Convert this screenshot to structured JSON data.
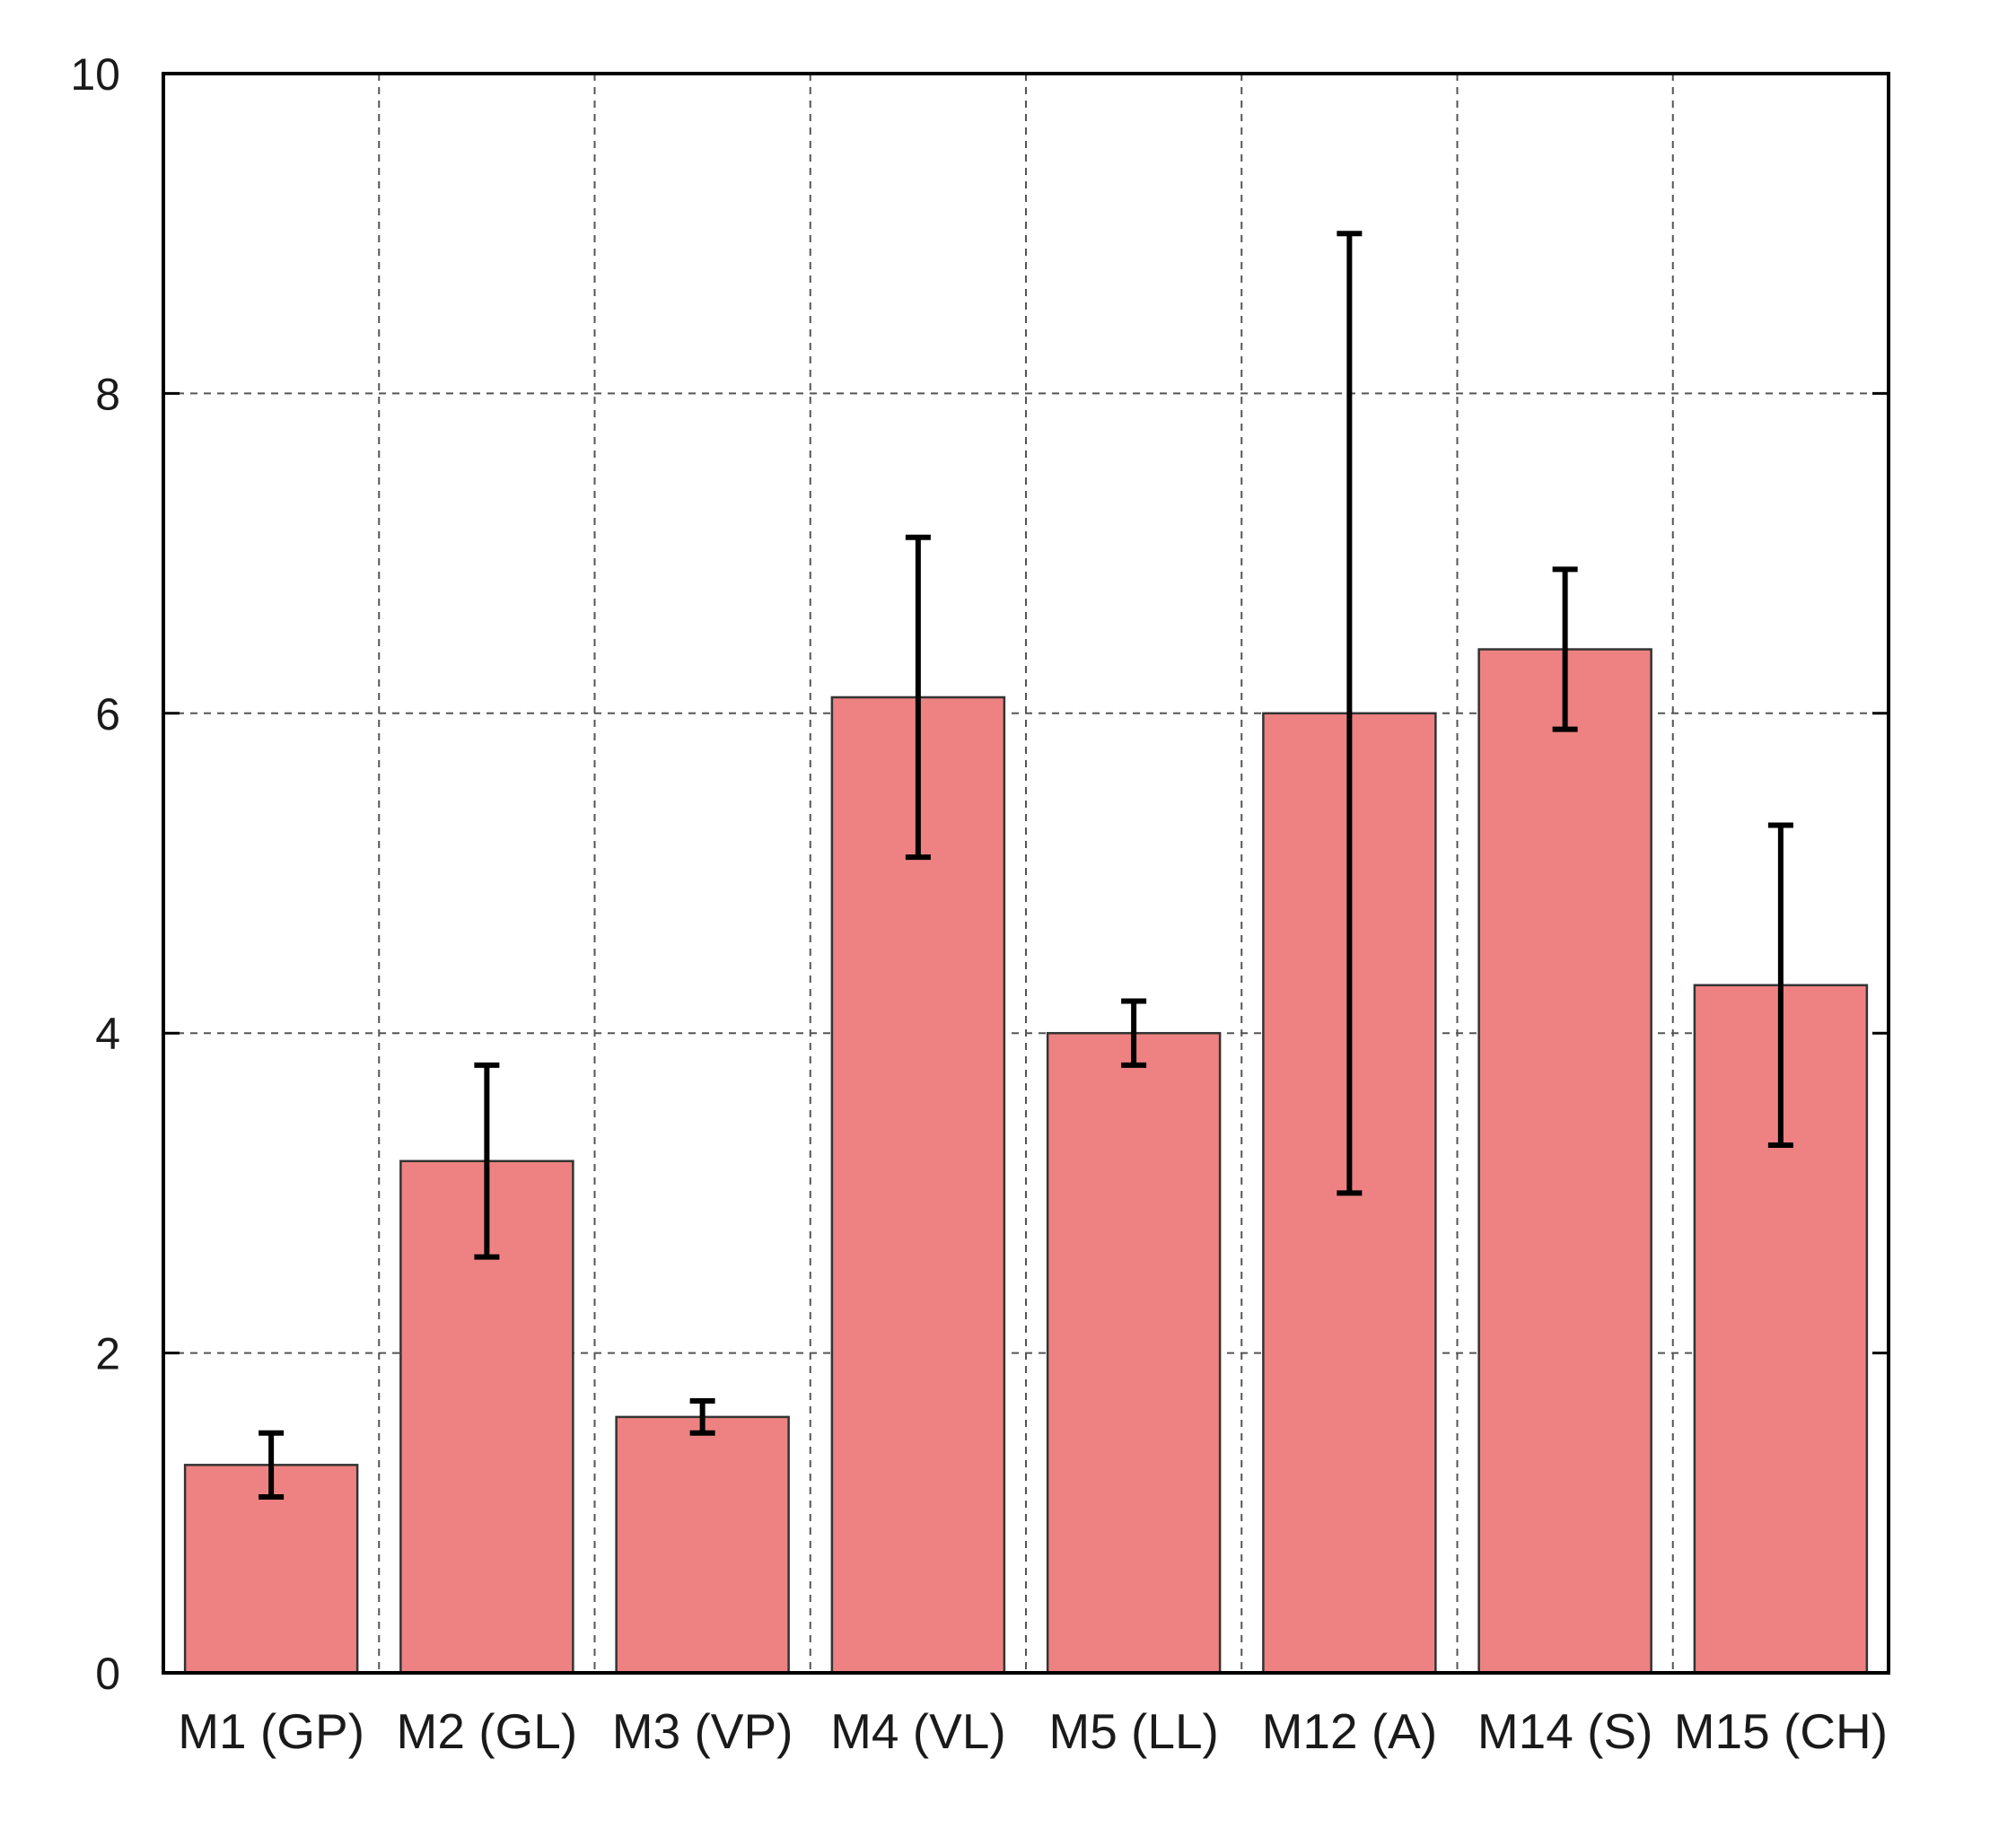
{
  "chart_data": {
    "type": "bar",
    "title": "",
    "xlabel": "",
    "ylabel": "",
    "categories": [
      "M1 (GP)",
      "M2 (GL)",
      "M3 (VP)",
      "M4 (VL)",
      "M5 (LL)",
      "M12 (A)",
      "M14 (S)",
      "M15 (CH)"
    ],
    "values": [
      1.3,
      3.2,
      1.6,
      6.1,
      4.0,
      6.0,
      6.4,
      4.3
    ],
    "error_low": [
      1.1,
      2.6,
      1.5,
      5.1,
      3.8,
      3.0,
      5.9,
      3.3
    ],
    "error_high": [
      1.5,
      3.8,
      1.7,
      7.1,
      4.2,
      9.0,
      6.9,
      5.3
    ],
    "ylim": [
      0,
      10
    ],
    "yticks": [
      0,
      2,
      4,
      6,
      8,
      10
    ],
    "grid": true,
    "bar_color": "#ee8282",
    "error_bar_color": "#000000"
  }
}
